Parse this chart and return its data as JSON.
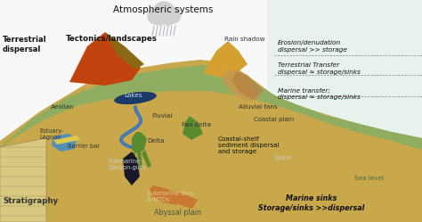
{
  "bg_color": "#f5f5f5",
  "labels": {
    "title": "Atmospheric systems",
    "terrestrial_dispersal": "Terrestrial\ndispersal",
    "tectonics": "Tectonics/landscapes",
    "rain_shadow": "Rain shadow",
    "erosion": "Erosion/denudation\ndispersal >> storage",
    "terrestrial_transfer": "Terrestrial Transfer\ndispersal ≈ storage/sinks",
    "marine_transfer": "Marine transfer;\ndispersal ≈ storage/sinks",
    "marine_sinks": "Marine sinks\nStorage/sinks >>dispersal",
    "stratigraphy": "Stratigraphy",
    "aeolian": "Aeolian",
    "lakes": "Lakes",
    "fluvial": "Fluvial",
    "estuary_lagoon": "Estuary-\nLagoon",
    "barrier_bar": "Barrier bar",
    "delta": "Delta",
    "fan_delta": "Fan delta",
    "alluvial_fans": "Alluvial fans",
    "coastal_plain": "Coastal plain",
    "coastal_shelf": "Coastal-shelf\nsediment dispersal\nand storage",
    "submarine_canyon": "Submarine\nCanyon-gully",
    "submarine_fans": "Submarine fans\n& MTDs",
    "slope": "Slope",
    "sea_level": "Sea level",
    "abyssal_plain": "Abyssal plain"
  },
  "colors": {
    "mountain": "#c1440e",
    "mountain_shadow": "#8b6914",
    "land_green": "#8fad60",
    "land_tan": "#c8a84b",
    "shallow_water": "#6ab4d8",
    "deep_water": "#3a7faa",
    "seafloor": "#585858",
    "abyssal": "#b8c8b0",
    "strat1": "#c8b87a",
    "strat2": "#e8d898",
    "lake": "#1a3a6a",
    "delta_green": "#5a8a30",
    "alluvial": "#c89050",
    "submarine_fan": "#c87830",
    "cloud": "#d0d0d0",
    "sea_level_fill": "#c8e8d8"
  }
}
